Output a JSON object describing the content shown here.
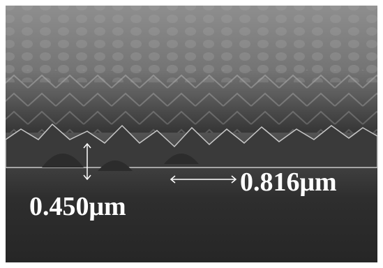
{
  "annotations": [
    {
      "label": "0.450μm"
    },
    {
      "label": "0.816μm"
    }
  ]
}
